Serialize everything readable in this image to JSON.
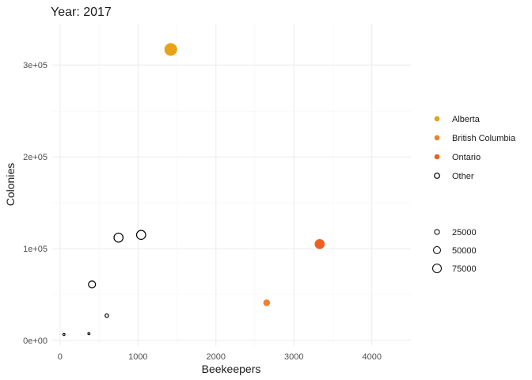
{
  "chart_data": {
    "type": "scatter",
    "title": "Year: 2017",
    "xlabel": "Beekeepers",
    "ylabel": "Colonies",
    "xlim": [
      -100,
      4500
    ],
    "ylim": [
      -6000,
      345000
    ],
    "x_ticks": [
      0,
      1000,
      2000,
      3000,
      4000
    ],
    "x_tick_labels": [
      "0",
      "1000",
      "2000",
      "3000",
      "4000"
    ],
    "y_ticks": [
      0,
      100000,
      200000,
      300000
    ],
    "y_tick_labels": [
      "0e+00",
      "1e+05",
      "2e+05",
      "3e+05"
    ],
    "grid": true,
    "legend_position": "right",
    "series": [
      {
        "name": "Alberta",
        "color": "#E6A317",
        "filled": true,
        "points": [
          {
            "x": 1420,
            "y": 317000,
            "size": 160000
          }
        ]
      },
      {
        "name": "British Columbia",
        "color": "#EE8133",
        "filled": true,
        "points": [
          {
            "x": 2650,
            "y": 41000,
            "size": 45000
          }
        ]
      },
      {
        "name": "Ontario",
        "color": "#EF6020",
        "filled": true,
        "points": [
          {
            "x": 3330,
            "y": 105000,
            "size": 100000
          }
        ]
      },
      {
        "name": "Other",
        "color": "#000000",
        "filled": false,
        "points": [
          {
            "x": 50,
            "y": 6500,
            "size": 4000
          },
          {
            "x": 370,
            "y": 7500,
            "size": 4000
          },
          {
            "x": 600,
            "y": 27000,
            "size": 12000
          },
          {
            "x": 410,
            "y": 61000,
            "size": 50000
          },
          {
            "x": 750,
            "y": 112000,
            "size": 82000
          },
          {
            "x": 1040,
            "y": 115000,
            "size": 82000
          }
        ]
      }
    ],
    "size_legend": {
      "values": [
        25000,
        50000,
        75000
      ],
      "labels": [
        "25000",
        "50000",
        "75000"
      ]
    }
  }
}
